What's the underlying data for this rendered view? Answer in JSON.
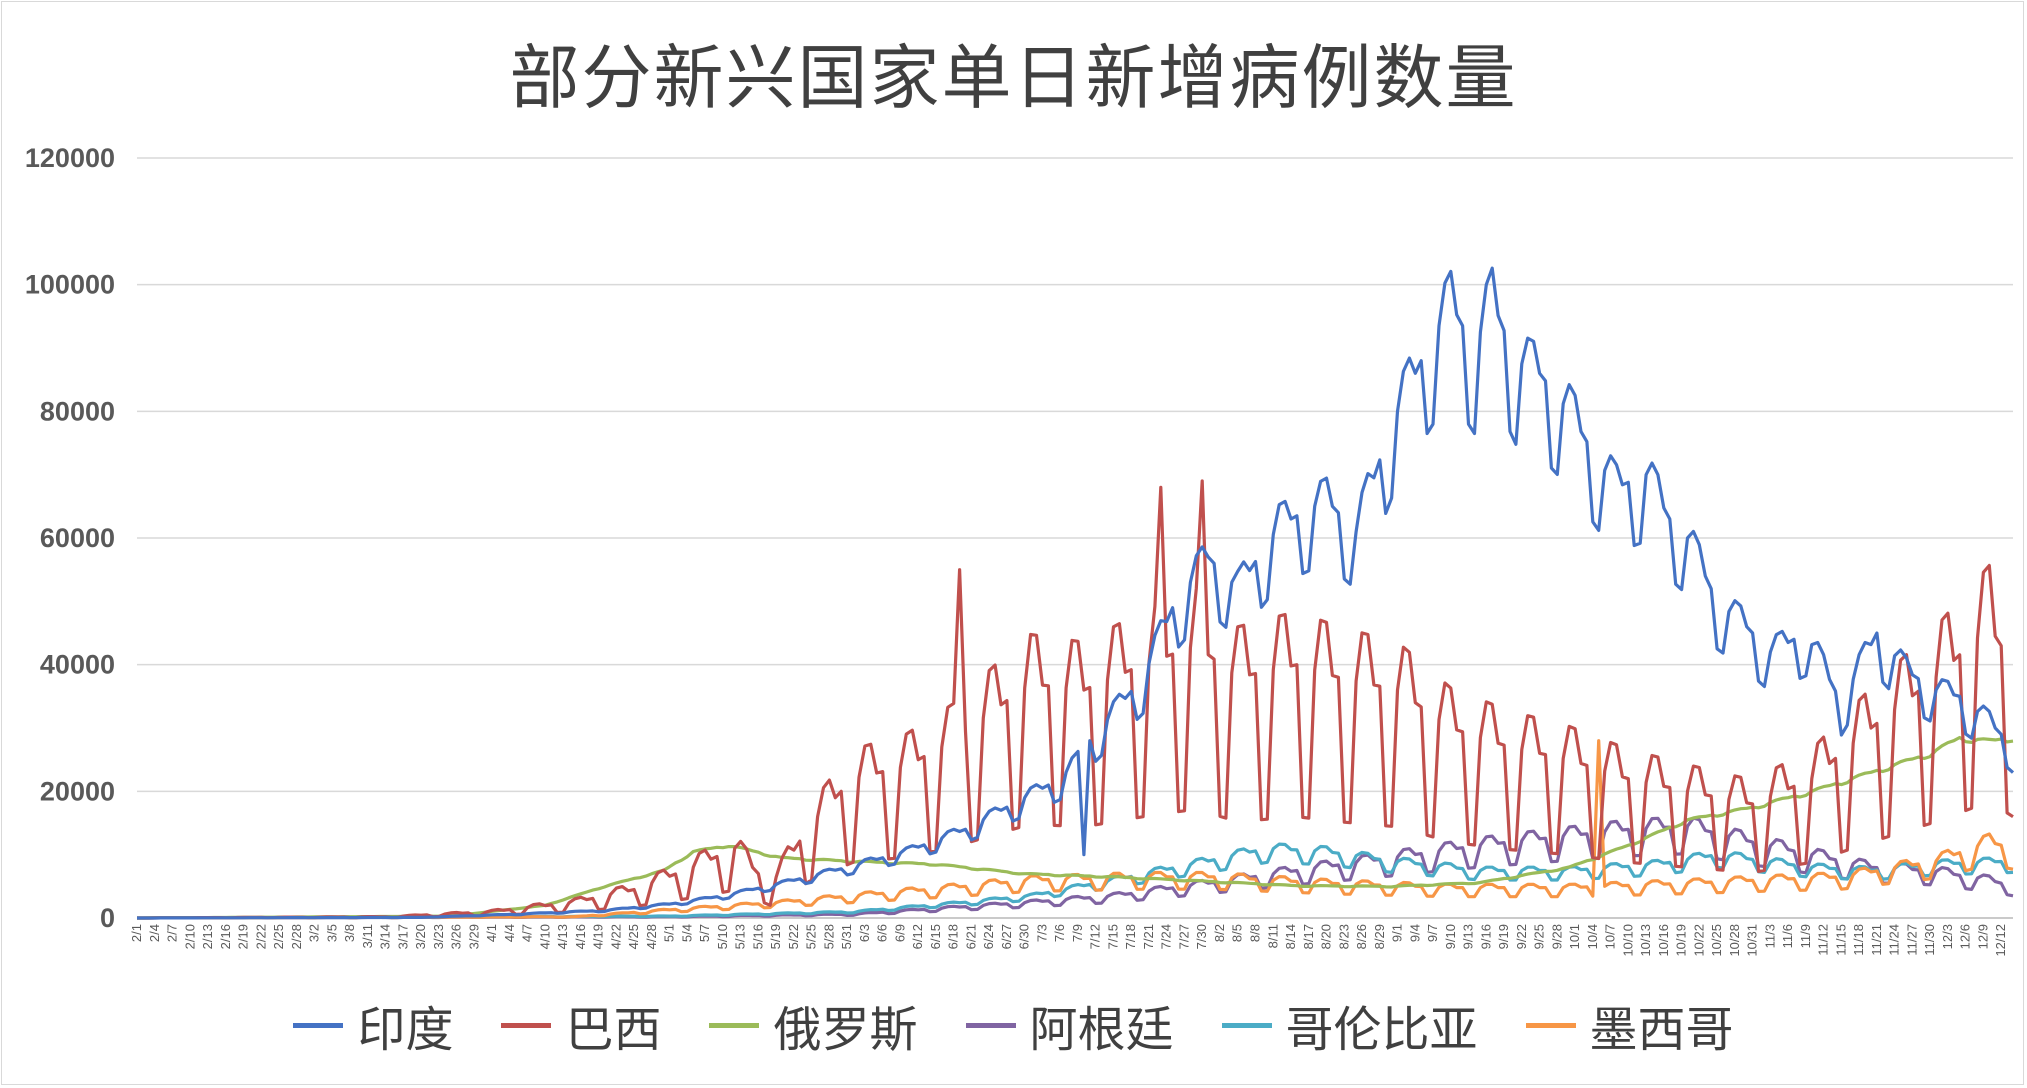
{
  "chart_data": {
    "type": "line",
    "title": "部分新兴国家单日新增病例数量",
    "xlabel": "",
    "ylabel": "",
    "ylim": [
      0,
      120000
    ],
    "yticks": [
      0,
      20000,
      40000,
      60000,
      80000,
      100000,
      120000
    ],
    "x_start": "2/1",
    "x_end": "12/14",
    "x_tick_labels": [
      "2/1",
      "2/4",
      "2/7",
      "2/10",
      "2/13",
      "2/16",
      "2/19",
      "2/22",
      "2/25",
      "2/28",
      "3/2",
      "3/5",
      "3/8",
      "3/11",
      "3/14",
      "3/17",
      "3/20",
      "3/23",
      "3/26",
      "3/29",
      "4/1",
      "4/4",
      "4/7",
      "4/10",
      "4/13",
      "4/16",
      "4/19",
      "4/22",
      "4/25",
      "4/28",
      "5/1",
      "5/4",
      "5/7",
      "5/10",
      "5/13",
      "5/16",
      "5/19",
      "5/22",
      "5/25",
      "5/28",
      "5/31",
      "6/3",
      "6/6",
      "6/9",
      "6/12",
      "6/15",
      "6/18",
      "6/21",
      "6/24",
      "6/27",
      "6/30",
      "7/3",
      "7/6",
      "7/9",
      "7/12",
      "7/15",
      "7/18",
      "7/21",
      "7/24",
      "7/27",
      "7/30",
      "8/2",
      "8/5",
      "8/8",
      "8/11",
      "8/14",
      "8/17",
      "8/20",
      "8/23",
      "8/26",
      "8/29",
      "9/1",
      "9/4",
      "9/7",
      "9/10",
      "9/13",
      "9/16",
      "9/19",
      "9/22",
      "9/25",
      "9/28",
      "10/1",
      "10/4",
      "10/7",
      "10/10",
      "10/13",
      "10/16",
      "10/19",
      "10/22",
      "10/25",
      "10/28",
      "10/31",
      "11/3",
      "11/6",
      "11/9",
      "11/12",
      "11/15",
      "11/18",
      "11/21",
      "11/24",
      "11/27",
      "11/30",
      "12/3",
      "12/6",
      "12/9",
      "12/12"
    ],
    "grid": true,
    "legend_position": "bottom",
    "series": [
      {
        "name": "印度",
        "color": "#4472c4",
        "anchors": [
          [
            "2/1",
            0
          ],
          [
            "3/20",
            100
          ],
          [
            "4/5",
            600
          ],
          [
            "4/20",
            1200
          ],
          [
            "5/1",
            2200
          ],
          [
            "5/10",
            3500
          ],
          [
            "5/20",
            5500
          ],
          [
            "5/31",
            8000
          ],
          [
            "6/10",
            10500
          ],
          [
            "6/20",
            14000
          ],
          [
            "6/30",
            19000
          ],
          [
            "7/6",
            22000
          ],
          [
            "7/9",
            25000
          ],
          [
            "7/10",
            10000
          ],
          [
            "7/11",
            28000
          ],
          [
            "7/20",
            38000
          ],
          [
            "7/25",
            49000
          ],
          [
            "7/31",
            57000
          ],
          [
            "8/5",
            52000
          ],
          [
            "8/12",
            62000
          ],
          [
            "8/20",
            66000
          ],
          [
            "8/25",
            61000
          ],
          [
            "8/31",
            78000
          ],
          [
            "9/6",
            90000
          ],
          [
            "9/10",
            97000
          ],
          [
            "9/14",
            90000
          ],
          [
            "9/17",
            97500
          ],
          [
            "9/21",
            88000
          ],
          [
            "9/25",
            86000
          ],
          [
            "9/30",
            80000
          ],
          [
            "10/5",
            72000
          ],
          [
            "10/8",
            68000
          ],
          [
            "10/13",
            70000
          ],
          [
            "10/17",
            63000
          ],
          [
            "10/20",
            60000
          ],
          [
            "10/25",
            50000
          ],
          [
            "10/30",
            46000
          ],
          [
            "11/3",
            42000
          ],
          [
            "11/9",
            45000
          ],
          [
            "11/15",
            34000
          ],
          [
            "11/21",
            45000
          ],
          [
            "11/26",
            39000
          ],
          [
            "12/1",
            36000
          ],
          [
            "12/5",
            35000
          ],
          [
            "12/10",
            31000
          ],
          [
            "12/14",
            27000
          ]
        ],
        "weekly_dip": 0.15
      },
      {
        "name": "巴西",
        "color": "#c0504d",
        "anchors": [
          [
            "2/1",
            0
          ],
          [
            "3/15",
            200
          ],
          [
            "4/1",
            1000
          ],
          [
            "4/15",
            2500
          ],
          [
            "4/25",
            4500
          ],
          [
            "5/5",
            8000
          ],
          [
            "5/12",
            11000
          ],
          [
            "5/18",
            5000
          ],
          [
            "5/25",
            15000
          ],
          [
            "6/1",
            22000
          ],
          [
            "6/10",
            24000
          ],
          [
            "6/18",
            28000
          ],
          [
            "6/25",
            33000
          ],
          [
            "7/1",
            37000
          ],
          [
            "7/10",
            36000
          ],
          [
            "7/20",
            40000
          ],
          [
            "7/29",
            43000
          ],
          [
            "8/5",
            38000
          ],
          [
            "8/15",
            40000
          ],
          [
            "8/22",
            38000
          ],
          [
            "9/1",
            36000
          ],
          [
            "9/10",
            30000
          ],
          [
            "9/20",
            27000
          ],
          [
            "9/30",
            25000
          ],
          [
            "10/10",
            22000
          ],
          [
            "10/20",
            20000
          ],
          [
            "10/31",
            18000
          ],
          [
            "11/10",
            22000
          ],
          [
            "11/20",
            30000
          ],
          [
            "12/1",
            38000
          ],
          [
            "12/10",
            46000
          ],
          [
            "12/14",
            40000
          ]
        ],
        "weekly_dip": 0.6,
        "spikes": [
          [
            "6/19",
            55000
          ],
          [
            "7/23",
            68000
          ],
          [
            "7/30",
            69000
          ]
        ]
      },
      {
        "name": "俄罗斯",
        "color": "#9bbb59",
        "anchors": [
          [
            "2/1",
            0
          ],
          [
            "3/25",
            300
          ],
          [
            "4/10",
            2000
          ],
          [
            "4/20",
            5000
          ],
          [
            "4/30",
            7500
          ],
          [
            "5/5",
            10500
          ],
          [
            "5/11",
            11500
          ],
          [
            "5/20",
            9500
          ],
          [
            "5/31",
            9000
          ],
          [
            "6/15",
            8500
          ],
          [
            "6/30",
            7000
          ],
          [
            "7/15",
            6500
          ],
          [
            "7/31",
            5800
          ],
          [
            "8/15",
            5100
          ],
          [
            "8/31",
            5000
          ],
          [
            "9/15",
            5600
          ],
          [
            "9/30",
            8000
          ],
          [
            "10/10",
            11500
          ],
          [
            "10/20",
            15500
          ],
          [
            "10/31",
            17500
          ],
          [
            "11/10",
            20000
          ],
          [
            "11/20",
            23000
          ],
          [
            "11/30",
            26000
          ],
          [
            "12/5",
            28500
          ],
          [
            "12/10",
            28000
          ],
          [
            "12/14",
            28500
          ]
        ],
        "weekly_dip": 0.02
      },
      {
        "name": "阿根廷",
        "color": "#8064a2",
        "anchors": [
          [
            "2/1",
            0
          ],
          [
            "5/1",
            200
          ],
          [
            "6/1",
            600
          ],
          [
            "7/1",
            2500
          ],
          [
            "7/15",
            3500
          ],
          [
            "7/31",
            5500
          ],
          [
            "8/15",
            7500
          ],
          [
            "8/31",
            9500
          ],
          [
            "9/15",
            11500
          ],
          [
            "9/30",
            13000
          ],
          [
            "10/10",
            14000
          ],
          [
            "10/20",
            14500
          ],
          [
            "10/31",
            12000
          ],
          [
            "11/10",
            10000
          ],
          [
            "11/20",
            8000
          ],
          [
            "11/30",
            7500
          ],
          [
            "12/10",
            6000
          ],
          [
            "12/14",
            5000
          ]
        ],
        "weekly_dip": 0.3
      },
      {
        "name": "哥伦比亚",
        "color": "#4bacc6",
        "anchors": [
          [
            "2/1",
            0
          ],
          [
            "5/1",
            300
          ],
          [
            "6/1",
            1000
          ],
          [
            "6/20",
            2500
          ],
          [
            "7/1",
            3500
          ],
          [
            "7/15",
            6000
          ],
          [
            "7/31",
            9000
          ],
          [
            "8/10",
            11000
          ],
          [
            "8/20",
            10500
          ],
          [
            "8/31",
            9000
          ],
          [
            "9/15",
            7500
          ],
          [
            "9/30",
            7500
          ],
          [
            "10/15",
            8500
          ],
          [
            "10/25",
            10000
          ],
          [
            "11/10",
            8000
          ],
          [
            "11/20",
            7500
          ],
          [
            "12/1",
            8500
          ],
          [
            "12/14",
            9000
          ]
        ],
        "weekly_dip": 0.2
      },
      {
        "name": "墨西哥",
        "color": "#f79646",
        "anchors": [
          [
            "2/1",
            0
          ],
          [
            "4/15",
            200
          ],
          [
            "5/1",
            1300
          ],
          [
            "5/20",
            2500
          ],
          [
            "6/1",
            3500
          ],
          [
            "6/20",
            5000
          ],
          [
            "7/1",
            6000
          ],
          [
            "7/20",
            6500
          ],
          [
            "8/1",
            6500
          ],
          [
            "8/20",
            5500
          ],
          [
            "9/10",
            4800
          ],
          [
            "9/30",
            4800
          ],
          [
            "10/20",
            5500
          ],
          [
            "11/1",
            6000
          ],
          [
            "11/15",
            6500
          ],
          [
            "12/1",
            9000
          ],
          [
            "12/10",
            12000
          ],
          [
            "12/14",
            11000
          ]
        ],
        "weekly_dip": 0.3,
        "spikes": [
          [
            "10/5",
            28000
          ]
        ]
      }
    ]
  }
}
